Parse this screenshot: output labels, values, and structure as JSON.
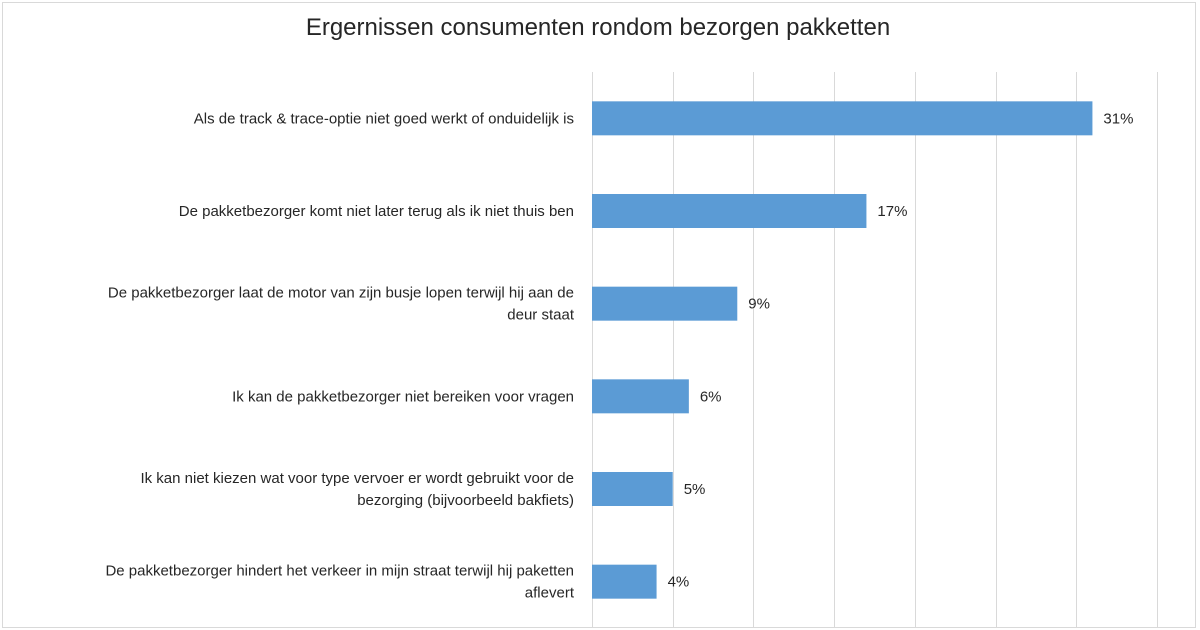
{
  "chart_data": {
    "type": "bar",
    "orientation": "horizontal",
    "title": "Ergernissen consumenten rondom bezorgen pakketten",
    "categories": [
      [
        "Als de track & trace-optie niet goed werkt of onduidelijk is"
      ],
      [
        "De pakketbezorger komt niet later terug als ik niet thuis ben"
      ],
      [
        "De pakketbezorger laat de motor van zijn busje lopen terwijl hij aan de",
        "deur staat"
      ],
      [
        "Ik kan de pakketbezorger niet bereiken voor vragen"
      ],
      [
        "Ik kan niet kiezen wat voor type vervoer er wordt gebruikt voor de",
        "bezorging (bijvoorbeeld bakfiets)"
      ],
      [
        "De pakketbezorger hindert het verkeer in mijn straat terwijl hij paketten",
        "aflevert"
      ]
    ],
    "values": [
      31,
      17,
      9,
      6,
      5,
      4
    ],
    "value_labels": [
      "31%",
      "17%",
      "9%",
      "6%",
      "5%",
      "4%"
    ],
    "xlim": [
      0,
      35
    ],
    "grid": true,
    "gridlines_every": 5,
    "bar_color": "#5b9bd5"
  }
}
